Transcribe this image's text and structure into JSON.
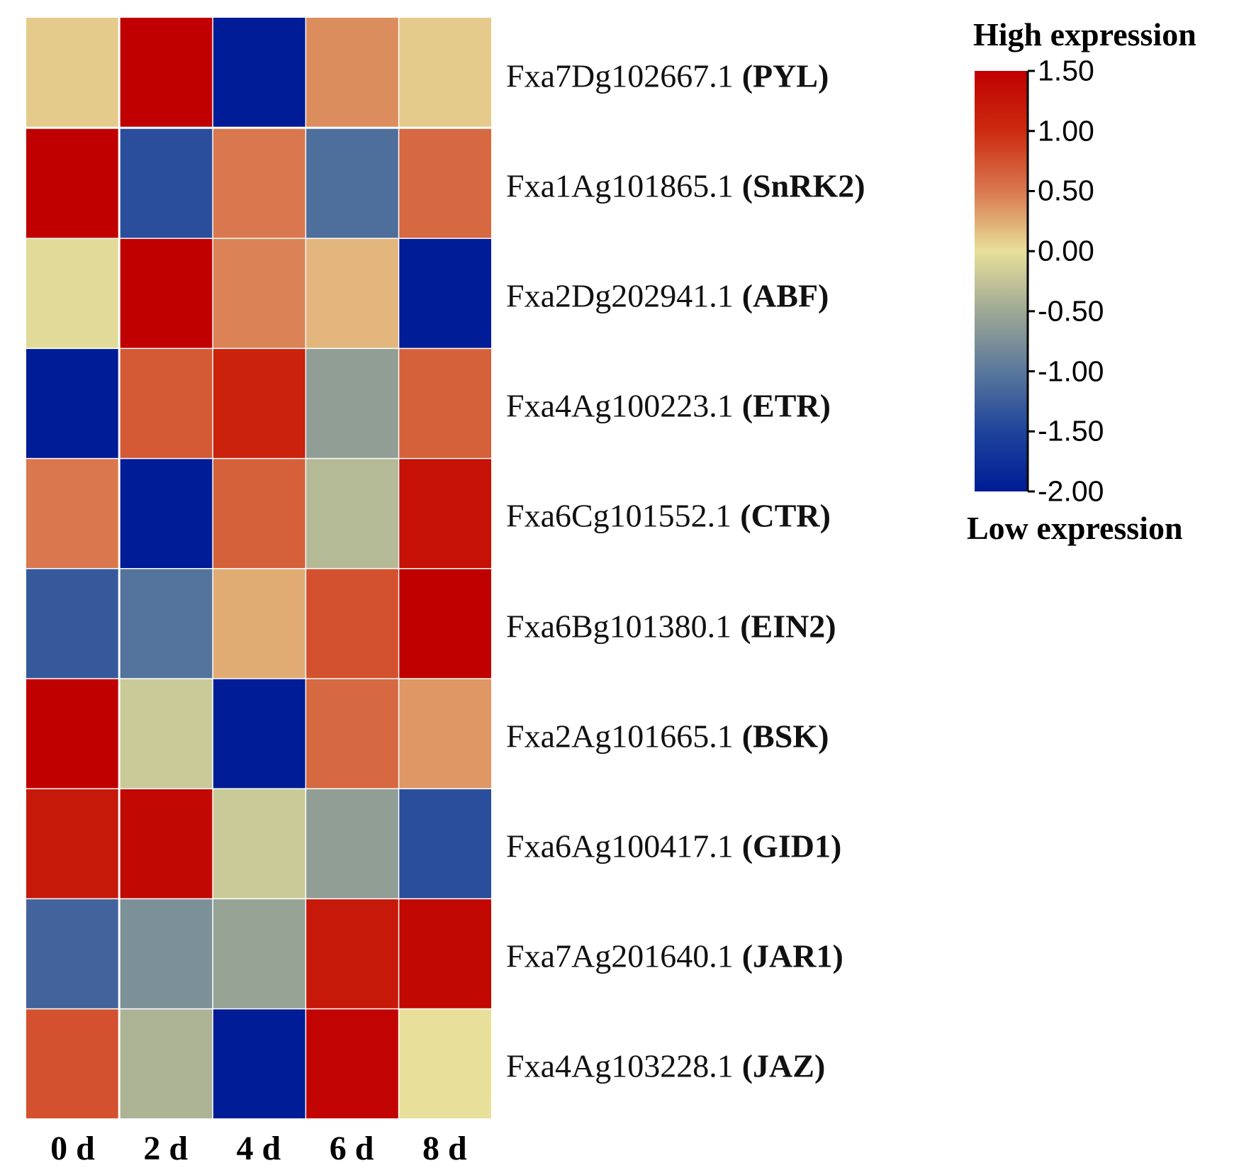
{
  "chart_data": {
    "type": "heatmap",
    "title": "",
    "columns": [
      "0 d",
      "2 d",
      "4 d",
      "6 d",
      "8 d"
    ],
    "rows": [
      {
        "gene_id": "Fxa7Dg102667.1",
        "gene": "(PYL)",
        "values": [
          0.1,
          1.5,
          -2.0,
          0.4,
          0.1
        ]
      },
      {
        "gene_id": "Fxa1Ag101865.1",
        "gene": "(SnRK2)",
        "values": [
          1.5,
          -1.4,
          0.5,
          -1.1,
          0.6
        ]
      },
      {
        "gene_id": "Fxa2Dg202941.1",
        "gene": "(ABF)",
        "values": [
          -0.05,
          1.5,
          0.45,
          0.2,
          -2.0
        ]
      },
      {
        "gene_id": "Fxa4Ag100223.1",
        "gene": "(ETR)",
        "values": [
          -2.0,
          0.7,
          1.1,
          -0.6,
          0.65
        ]
      },
      {
        "gene_id": "Fxa6Cg101552.1",
        "gene": "(CTR)",
        "values": [
          0.5,
          -2.0,
          0.65,
          -0.35,
          1.3
        ]
      },
      {
        "gene_id": "Fxa6Bg101380.1",
        "gene": "(EIN2)",
        "values": [
          -1.3,
          -1.05,
          0.25,
          0.75,
          1.5
        ]
      },
      {
        "gene_id": "Fxa2Ag101665.1",
        "gene": "(BSK)",
        "values": [
          1.5,
          -0.2,
          -2.0,
          0.6,
          0.35
        ]
      },
      {
        "gene_id": "Fxa6Ag100417.1",
        "gene": "(GID1)",
        "values": [
          1.2,
          1.4,
          -0.2,
          -0.6,
          -1.4
        ]
      },
      {
        "gene_id": "Fxa7Ag201640.1",
        "gene": "(JAR1)",
        "values": [
          -1.2,
          -0.75,
          -0.55,
          1.2,
          1.4
        ]
      },
      {
        "gene_id": "Fxa4Ag103228.1",
        "gene": "(JAZ)",
        "values": [
          0.75,
          -0.4,
          -2.0,
          1.45,
          0.0
        ]
      }
    ],
    "colorbar": {
      "range": [
        -2.0,
        1.5
      ],
      "ticks": [
        "1.50",
        "1.00",
        "0.50",
        "0.00",
        "-0.50",
        "-1.00",
        "-1.50",
        "-2.00"
      ],
      "high_label": "High expression",
      "low_label": "Low expression",
      "stops": [
        {
          "value": 1.5,
          "color": "#c00000"
        },
        {
          "value": 1.0,
          "color": "#cc2a10"
        },
        {
          "value": 0.5,
          "color": "#d9784e"
        },
        {
          "value": 0.0,
          "color": "#e8e09a"
        },
        {
          "value": -0.5,
          "color": "#9ea894"
        },
        {
          "value": -1.0,
          "color": "#5a789c"
        },
        {
          "value": -1.5,
          "color": "#1e449c"
        },
        {
          "value": -2.0,
          "color": "#001c96"
        }
      ]
    }
  }
}
